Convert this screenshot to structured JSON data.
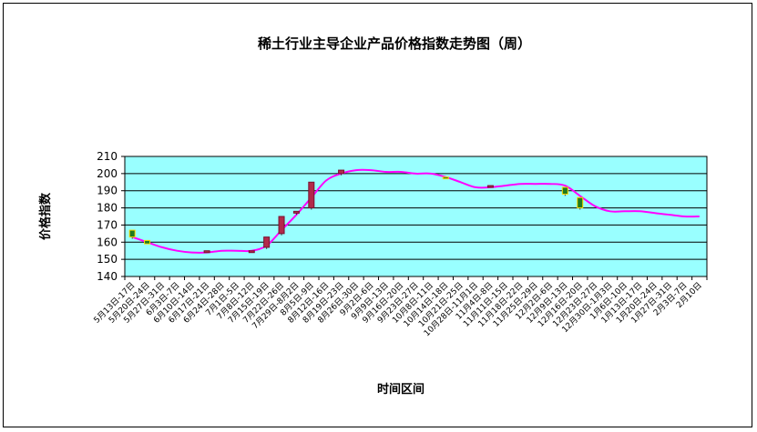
{
  "chart_data": {
    "type": "candlestick-line",
    "title": "稀土行业主导企业产品价格指数走势图（周）",
    "xlabel": "时间区间",
    "ylabel": "价格指数",
    "ylim": [
      140,
      210
    ],
    "yticks": [
      140,
      150,
      160,
      170,
      180,
      190,
      200,
      210
    ],
    "grid": true,
    "categories": [
      "5月13日-17日",
      "5月20日-24日",
      "5月27日-31日",
      "6月3日-7日",
      "6月10日-14日",
      "6月17日-21日",
      "6月24日-28日",
      "7月1日-5日",
      "7月8日-12日",
      "7月15日-19日",
      "7月22日-26日",
      "7月29日-8月2日",
      "8月5日-9日",
      "8月12日-16日",
      "8月19日-23日",
      "8月26日-30日",
      "9月2日-6日",
      "9月9日-13日",
      "9月16日-20日",
      "9月23日-27日",
      "10月8日-11日",
      "10月14日-18日",
      "10月21日-25日",
      "10月28日-11月1日",
      "11月4日-8日",
      "11月11日-15日",
      "11月18日-22日",
      "11月25日-29日",
      "12月2日-6日",
      "12月9日-13日",
      "12月16日-20日",
      "12月23日-27日",
      "12月30日-1月3日",
      "1月6日-10日",
      "1月13日-17日",
      "1月20日-24日",
      "1月27日-31日",
      "2月3日-7日",
      "2月10日"
    ],
    "line": [
      163,
      160,
      157,
      155,
      154,
      154,
      155,
      155,
      155,
      158,
      167,
      176,
      186,
      196,
      200,
      202,
      202,
      201,
      201,
      200,
      200,
      198,
      195,
      192,
      192,
      193,
      194,
      194,
      194,
      193,
      187,
      181,
      178,
      178,
      178,
      177,
      176,
      175,
      175
    ],
    "ohlc": [
      {
        "i": 0,
        "open": 167,
        "close": 163,
        "high": 167,
        "low": 162
      },
      {
        "i": 1,
        "open": 161,
        "close": 159,
        "high": 161,
        "low": 159
      },
      {
        "i": 5,
        "open": 154,
        "close": 155,
        "high": 155,
        "low": 154
      },
      {
        "i": 8,
        "open": 155,
        "close": 155,
        "high": 155,
        "low": 155
      },
      {
        "i": 9,
        "open": 157,
        "close": 163,
        "high": 163,
        "low": 156
      },
      {
        "i": 10,
        "open": 165,
        "close": 175,
        "high": 175,
        "low": 164
      },
      {
        "i": 11,
        "open": 178,
        "close": 178,
        "high": 178,
        "low": 176
      },
      {
        "i": 12,
        "open": 180,
        "close": 195,
        "high": 195,
        "low": 179
      },
      {
        "i": 14,
        "open": 200,
        "close": 202,
        "high": 202,
        "low": 199
      },
      {
        "i": 21,
        "open": 198,
        "close": 197,
        "high": 198,
        "low": 197
      },
      {
        "i": 24,
        "open": 192,
        "close": 193,
        "high": 193,
        "low": 192
      },
      {
        "i": 29,
        "open": 192,
        "close": 188,
        "high": 192,
        "low": 187
      },
      {
        "i": 30,
        "open": 186,
        "close": 180,
        "high": 186,
        "low": 179
      }
    ],
    "colors": {
      "plot_bg": "#99FFFF",
      "line": "#FF00FF",
      "up": "#B22A4A",
      "down": "#1E7A1E",
      "down_edge": "#FFD700",
      "grid": "#000000"
    }
  }
}
